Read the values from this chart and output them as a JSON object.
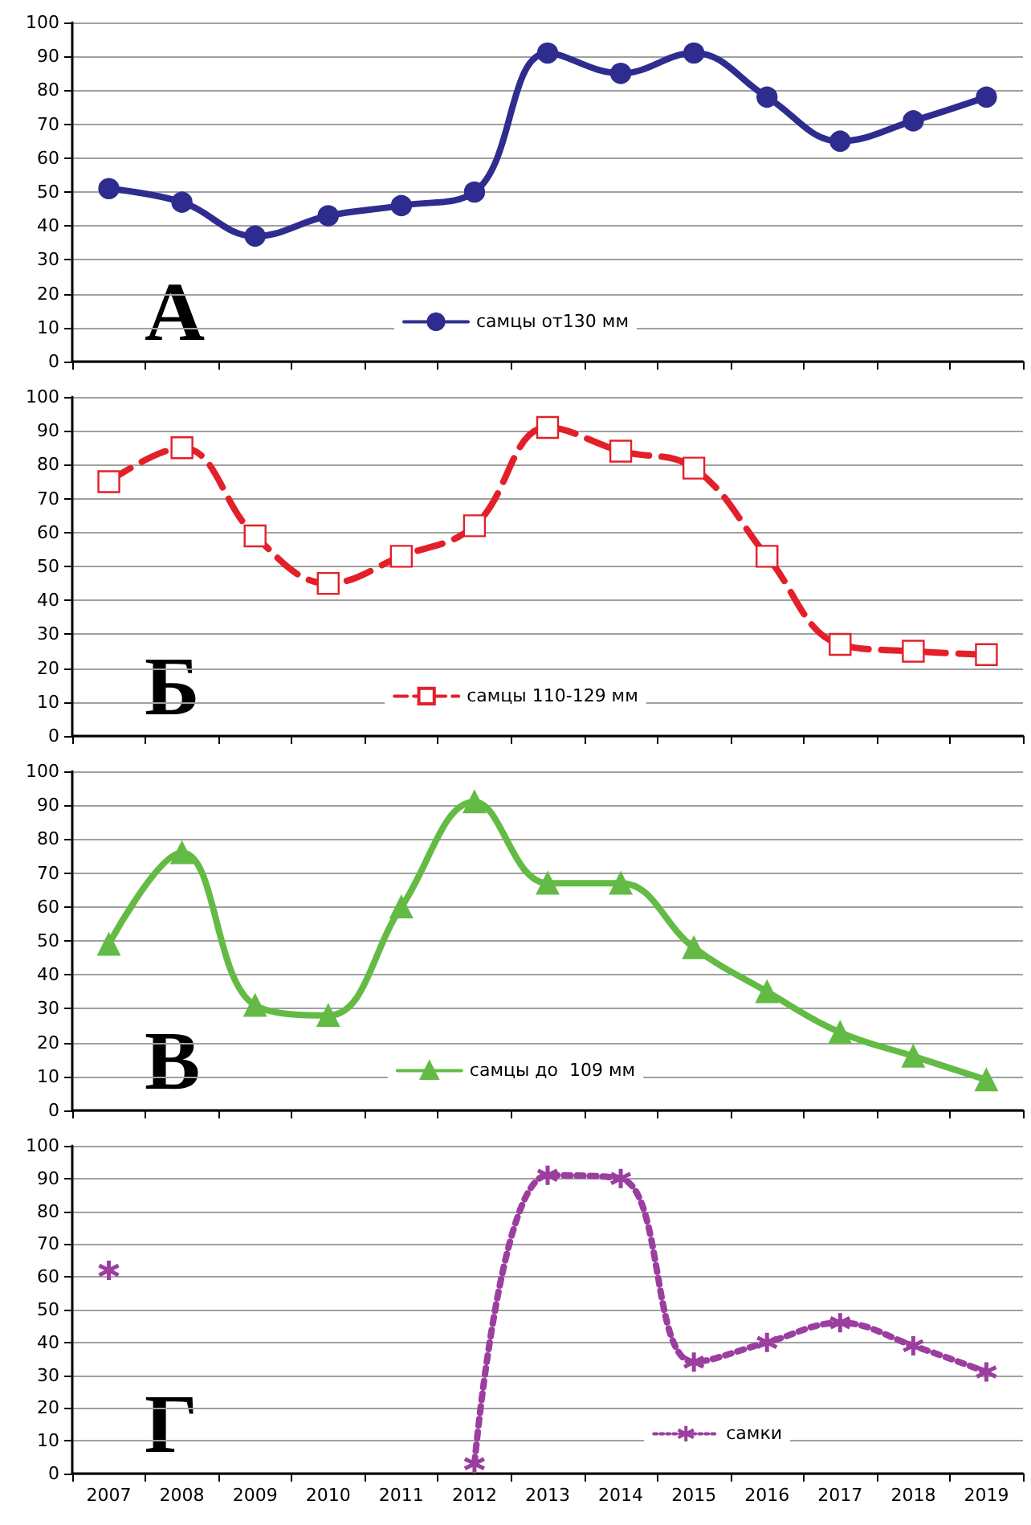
{
  "chart_data": [
    {
      "type": "line",
      "annotations": [
        "А"
      ],
      "categories": [
        "2007",
        "2008",
        "2009",
        "2010",
        "2011",
        "2012",
        "2013",
        "2014",
        "2015",
        "2016",
        "2017",
        "2018",
        "2019"
      ],
      "tick_labels": "y",
      "ylim": [
        0,
        100
      ],
      "yticks": [
        0,
        10,
        20,
        30,
        40,
        50,
        60,
        70,
        80,
        90,
        100
      ],
      "grid": "y",
      "legend": "bottom",
      "marker": "circle",
      "line_style": "solid",
      "series": [
        {
          "name": "самцы от130 мм",
          "color": "#2e2d8f",
          "values": [
            51,
            47,
            37,
            43,
            46,
            50,
            91,
            85,
            91,
            78,
            65,
            71,
            78
          ]
        }
      ]
    },
    {
      "type": "line",
      "annotations": [
        "Б"
      ],
      "categories": [
        "2007",
        "2008",
        "2009",
        "2010",
        "2011",
        "2012",
        "2013",
        "2014",
        "2015",
        "2016",
        "2017",
        "2018",
        "2019"
      ],
      "tick_labels": "y",
      "ylim": [
        0,
        100
      ],
      "yticks": [
        0,
        10,
        20,
        30,
        40,
        50,
        60,
        70,
        80,
        90,
        100
      ],
      "grid": "y",
      "legend": "bottom",
      "marker": "square",
      "line_style": "dashed",
      "series": [
        {
          "name": "самцы 110-129 мм",
          "color": "#e3202a",
          "values": [
            75,
            85,
            59,
            45,
            53,
            62,
            91,
            84,
            79,
            53,
            27,
            25,
            24
          ]
        }
      ]
    },
    {
      "type": "line",
      "annotations": [
        "В"
      ],
      "categories": [
        "2007",
        "2008",
        "2009",
        "2010",
        "2011",
        "2012",
        "2013",
        "2014",
        "2015",
        "2016",
        "2017",
        "2018",
        "2019"
      ],
      "tick_labels": "y",
      "ylim": [
        0,
        100
      ],
      "yticks": [
        0,
        10,
        20,
        30,
        40,
        50,
        60,
        70,
        80,
        90,
        100
      ],
      "grid": "y",
      "legend": "bottom",
      "marker": "triangle",
      "line_style": "solid",
      "series": [
        {
          "name": "самцы до  109 мм",
          "color": "#63bb45",
          "values": [
            49,
            76,
            31,
            28,
            60,
            91,
            67,
            67,
            48,
            35,
            23,
            16,
            9
          ]
        }
      ]
    },
    {
      "type": "line",
      "annotations": [
        "Г"
      ],
      "categories": [
        "2007",
        "2008",
        "2009",
        "2010",
        "2011",
        "2012",
        "2013",
        "2014",
        "2015",
        "2016",
        "2017",
        "2018",
        "2019"
      ],
      "ylim": [
        0,
        100
      ],
      "yticks": [
        0,
        10,
        20,
        30,
        40,
        50,
        60,
        70,
        80,
        90,
        100
      ],
      "grid": "y",
      "legend": "bottom right",
      "marker": "cross",
      "line_style": "dotted",
      "series": [
        {
          "name": "самки",
          "color": "#9b3ea0",
          "values": [
            62,
            null,
            null,
            null,
            null,
            3,
            91,
            90,
            34,
            40,
            46,
            39,
            31
          ]
        }
      ]
    }
  ]
}
